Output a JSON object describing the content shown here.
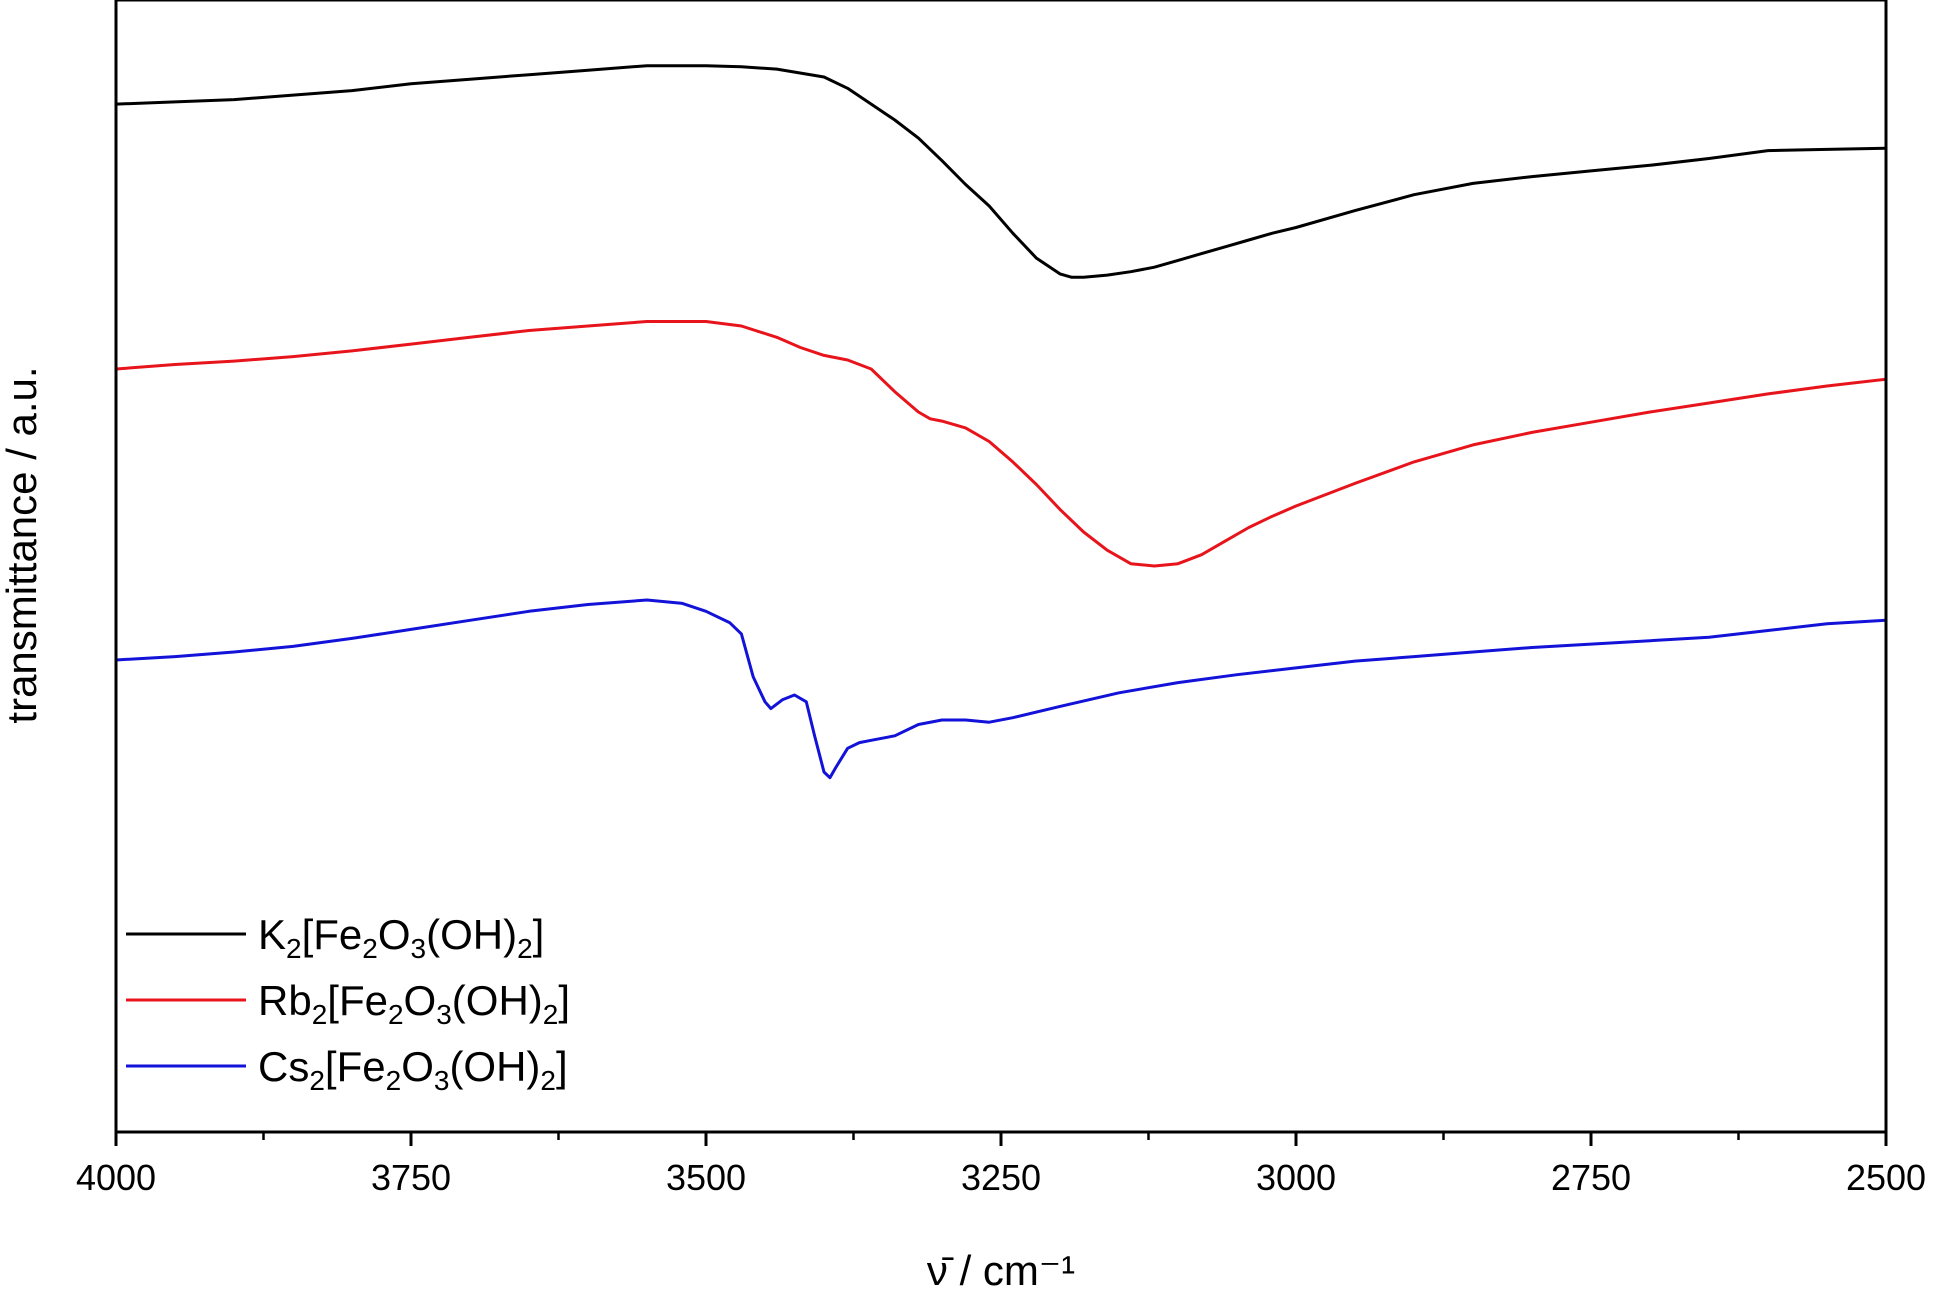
{
  "chart_data": {
    "type": "line",
    "xlabel": "ν̄ / cm⁻¹",
    "ylabel": "transmittance / a.u.",
    "xlim": [
      4000,
      2500
    ],
    "x_reversed": true,
    "ylim": [
      0,
      10
    ],
    "y_ticks_shown": false,
    "grid": false,
    "legend_position": "bottom-left",
    "x_ticks": [
      "4000",
      "3750",
      "3500",
      "3250",
      "3000",
      "2750",
      "2500"
    ],
    "x_tick_values": [
      4000,
      3750,
      3500,
      3250,
      3000,
      2750,
      2500
    ],
    "series": [
      {
        "name": "K2[Fe2O3(OH)2]",
        "label_parts": [
          [
            "K",
            ""
          ],
          [
            "2",
            "sub"
          ],
          [
            "[Fe",
            ""
          ],
          [
            "2",
            "sub"
          ],
          [
            "O",
            ""
          ],
          [
            "3",
            "sub"
          ],
          [
            "(OH)",
            ""
          ],
          [
            "2",
            "sub"
          ],
          [
            "]",
            ""
          ]
        ],
        "color": "#000000",
        "x": [
          4000,
          3950,
          3900,
          3850,
          3800,
          3750,
          3700,
          3650,
          3600,
          3550,
          3500,
          3470,
          3440,
          3400,
          3380,
          3360,
          3340,
          3320,
          3300,
          3280,
          3260,
          3240,
          3220,
          3200,
          3190,
          3180,
          3160,
          3140,
          3120,
          3100,
          3080,
          3060,
          3040,
          3020,
          3000,
          2950,
          2900,
          2850,
          2800,
          2750,
          2700,
          2650,
          2600,
          2550,
          2500
        ],
        "y": [
          9.08,
          9.1,
          9.12,
          9.16,
          9.2,
          9.26,
          9.3,
          9.34,
          9.38,
          9.42,
          9.42,
          9.41,
          9.39,
          9.32,
          9.22,
          9.08,
          8.94,
          8.78,
          8.58,
          8.37,
          8.18,
          7.94,
          7.72,
          7.58,
          7.55,
          7.55,
          7.57,
          7.6,
          7.64,
          7.7,
          7.76,
          7.82,
          7.88,
          7.94,
          7.99,
          8.14,
          8.28,
          8.38,
          8.44,
          8.49,
          8.54,
          8.6,
          8.67,
          8.68,
          8.69
        ]
      },
      {
        "name": "Rb2[Fe2O3(OH)2]",
        "label_parts": [
          [
            "Rb",
            ""
          ],
          [
            "2",
            "sub"
          ],
          [
            "[Fe",
            ""
          ],
          [
            "2",
            "sub"
          ],
          [
            "O",
            ""
          ],
          [
            "3",
            "sub"
          ],
          [
            "(OH)",
            ""
          ],
          [
            "2",
            "sub"
          ],
          [
            "]",
            ""
          ]
        ],
        "color": "#e8141b",
        "x": [
          4000,
          3950,
          3900,
          3850,
          3800,
          3750,
          3700,
          3650,
          3600,
          3550,
          3500,
          3470,
          3440,
          3420,
          3400,
          3380,
          3360,
          3340,
          3320,
          3310,
          3300,
          3280,
          3260,
          3240,
          3220,
          3200,
          3180,
          3160,
          3140,
          3120,
          3100,
          3080,
          3060,
          3040,
          3020,
          3000,
          2950,
          2900,
          2850,
          2800,
          2750,
          2700,
          2650,
          2600,
          2550,
          2500
        ],
        "y": [
          6.74,
          6.78,
          6.81,
          6.85,
          6.9,
          6.96,
          7.02,
          7.08,
          7.12,
          7.16,
          7.16,
          7.12,
          7.02,
          6.93,
          6.86,
          6.82,
          6.74,
          6.54,
          6.36,
          6.3,
          6.28,
          6.22,
          6.1,
          5.92,
          5.72,
          5.5,
          5.3,
          5.14,
          5.02,
          5.0,
          5.02,
          5.1,
          5.22,
          5.34,
          5.44,
          5.53,
          5.73,
          5.92,
          6.07,
          6.18,
          6.27,
          6.36,
          6.44,
          6.52,
          6.59,
          6.65
        ]
      },
      {
        "name": "Cs2[Fe2O3(OH)2]",
        "label_parts": [
          [
            "Cs",
            ""
          ],
          [
            "2",
            "sub"
          ],
          [
            "[Fe",
            ""
          ],
          [
            "2",
            "sub"
          ],
          [
            "O",
            ""
          ],
          [
            "3",
            "sub"
          ],
          [
            "(OH)",
            ""
          ],
          [
            "2",
            "sub"
          ],
          [
            "]",
            ""
          ]
        ],
        "color": "#1212d9",
        "x": [
          4000,
          3950,
          3900,
          3850,
          3800,
          3750,
          3700,
          3650,
          3600,
          3550,
          3520,
          3500,
          3480,
          3470,
          3460,
          3450,
          3445,
          3435,
          3425,
          3415,
          3408,
          3400,
          3395,
          3390,
          3380,
          3370,
          3360,
          3340,
          3320,
          3300,
          3280,
          3260,
          3240,
          3200,
          3150,
          3100,
          3050,
          3000,
          2950,
          2900,
          2850,
          2800,
          2750,
          2700,
          2650,
          2600,
          2550,
          2500
        ],
        "y": [
          4.17,
          4.2,
          4.24,
          4.29,
          4.36,
          4.44,
          4.52,
          4.6,
          4.66,
          4.7,
          4.67,
          4.6,
          4.5,
          4.4,
          4.02,
          3.8,
          3.74,
          3.82,
          3.86,
          3.8,
          3.5,
          3.18,
          3.13,
          3.22,
          3.39,
          3.44,
          3.46,
          3.5,
          3.6,
          3.64,
          3.64,
          3.62,
          3.66,
          3.76,
          3.88,
          3.97,
          4.04,
          4.1,
          4.16,
          4.2,
          4.24,
          4.28,
          4.31,
          4.34,
          4.37,
          4.43,
          4.49,
          4.52
        ]
      }
    ]
  }
}
